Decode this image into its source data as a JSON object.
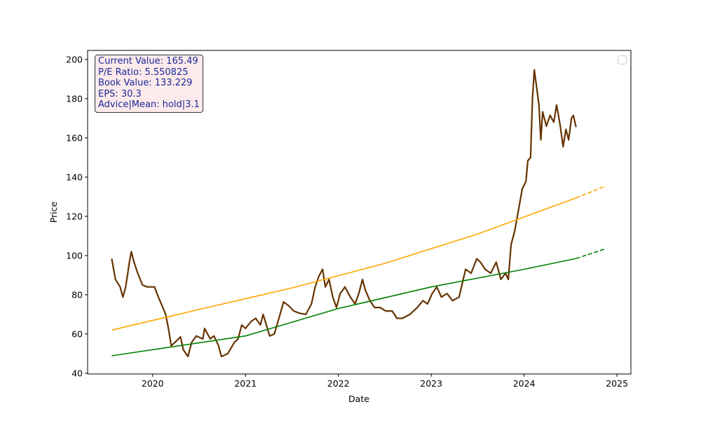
{
  "chart_data": {
    "type": "line",
    "title": "",
    "xlabel": "Date",
    "ylabel": "Price",
    "xlim": [
      2019.3,
      2025.15
    ],
    "ylim": [
      39.6,
      204.6
    ],
    "x_ticks": [
      "2020",
      "2021",
      "2022",
      "2023",
      "2024",
      "2025"
    ],
    "y_ticks": [
      "40",
      "60",
      "80",
      "100",
      "120",
      "140",
      "160",
      "180",
      "200"
    ],
    "grid": false,
    "legend": {
      "placement": "top-right",
      "entries": []
    },
    "annotation": {
      "lines": [
        "Current Value: 165.49",
        "P/E Ratio: 5.550825",
        "Book Value: 133.229",
        "EPS: 30.3",
        "Advice|Mean: hold|3.1"
      ]
    },
    "series": [
      {
        "color": "#663300",
        "style": "solid",
        "points": [
          [
            2019.56,
            98.4
          ],
          [
            2019.6,
            87.8
          ],
          [
            2019.65,
            84
          ],
          [
            2019.68,
            78.8
          ],
          [
            2019.71,
            84
          ],
          [
            2019.75,
            96.6
          ],
          [
            2019.77,
            102
          ],
          [
            2019.8,
            96.6
          ],
          [
            2019.84,
            91
          ],
          [
            2019.89,
            85
          ],
          [
            2019.94,
            84
          ],
          [
            2020.02,
            84
          ],
          [
            2020.06,
            79
          ],
          [
            2020.11,
            73.5
          ],
          [
            2020.14,
            70
          ],
          [
            2020.17,
            62.8
          ],
          [
            2020.2,
            54
          ],
          [
            2020.24,
            55.7
          ],
          [
            2020.3,
            58.5
          ],
          [
            2020.33,
            52
          ],
          [
            2020.38,
            48.5
          ],
          [
            2020.42,
            55.7
          ],
          [
            2020.47,
            59
          ],
          [
            2020.54,
            57.5
          ],
          [
            2020.56,
            62.8
          ],
          [
            2020.62,
            57.5
          ],
          [
            2020.66,
            59
          ],
          [
            2020.71,
            54
          ],
          [
            2020.74,
            48.5
          ],
          [
            2020.81,
            50
          ],
          [
            2020.88,
            55.7
          ],
          [
            2020.92,
            57.5
          ],
          [
            2020.96,
            64.6
          ],
          [
            2021.0,
            62.8
          ],
          [
            2021.06,
            66.4
          ],
          [
            2021.11,
            68
          ],
          [
            2021.16,
            64.6
          ],
          [
            2021.19,
            70
          ],
          [
            2021.26,
            59
          ],
          [
            2021.31,
            60
          ],
          [
            2021.36,
            68
          ],
          [
            2021.41,
            76.3
          ],
          [
            2021.46,
            74.6
          ],
          [
            2021.52,
            71.7
          ],
          [
            2021.58,
            70.6
          ],
          [
            2021.65,
            70
          ],
          [
            2021.71,
            75.3
          ],
          [
            2021.75,
            84
          ],
          [
            2021.79,
            89.5
          ],
          [
            2021.83,
            93
          ],
          [
            2021.86,
            84
          ],
          [
            2021.9,
            87.8
          ],
          [
            2021.94,
            78.8
          ],
          [
            2021.98,
            73.5
          ],
          [
            2022.02,
            80.6
          ],
          [
            2022.07,
            84
          ],
          [
            2022.13,
            78.8
          ],
          [
            2022.18,
            75.3
          ],
          [
            2022.22,
            80.6
          ],
          [
            2022.26,
            87.8
          ],
          [
            2022.29,
            82.4
          ],
          [
            2022.34,
            77
          ],
          [
            2022.39,
            73.5
          ],
          [
            2022.45,
            73.5
          ],
          [
            2022.51,
            71.7
          ],
          [
            2022.58,
            71.7
          ],
          [
            2022.63,
            68
          ],
          [
            2022.69,
            68
          ],
          [
            2022.77,
            70
          ],
          [
            2022.85,
            73.5
          ],
          [
            2022.91,
            77
          ],
          [
            2022.96,
            75.3
          ],
          [
            2023.01,
            80.6
          ],
          [
            2023.06,
            84
          ],
          [
            2023.11,
            78.8
          ],
          [
            2023.17,
            80.6
          ],
          [
            2023.23,
            77
          ],
          [
            2023.3,
            78.8
          ],
          [
            2023.37,
            93
          ],
          [
            2023.43,
            91
          ],
          [
            2023.49,
            98.4
          ],
          [
            2023.53,
            96.6
          ],
          [
            2023.58,
            93
          ],
          [
            2023.64,
            91
          ],
          [
            2023.7,
            96.6
          ],
          [
            2023.75,
            87.8
          ],
          [
            2023.8,
            91
          ],
          [
            2023.83,
            87.8
          ],
          [
            2023.86,
            105.6
          ],
          [
            2023.9,
            112.7
          ],
          [
            2023.94,
            123.4
          ],
          [
            2023.98,
            134
          ],
          [
            2024.02,
            137.7
          ],
          [
            2024.04,
            148.3
          ],
          [
            2024.07,
            150
          ],
          [
            2024.09,
            180.4
          ],
          [
            2024.11,
            194.7
          ],
          [
            2024.14,
            184
          ],
          [
            2024.16,
            176.8
          ],
          [
            2024.18,
            159
          ],
          [
            2024.2,
            173.3
          ],
          [
            2024.24,
            166
          ],
          [
            2024.28,
            171.5
          ],
          [
            2024.32,
            168
          ],
          [
            2024.35,
            176.8
          ],
          [
            2024.39,
            166
          ],
          [
            2024.42,
            155.5
          ],
          [
            2024.45,
            164.4
          ],
          [
            2024.48,
            159
          ],
          [
            2024.51,
            170
          ],
          [
            2024.53,
            171.5
          ],
          [
            2024.56,
            165.49
          ]
        ]
      },
      {
        "color": "#ffa500",
        "style": "solid",
        "points": [
          [
            2019.56,
            62
          ],
          [
            2020.5,
            72.5
          ],
          [
            2021.5,
            83.5
          ],
          [
            2022.5,
            96
          ],
          [
            2023.5,
            111
          ],
          [
            2024.56,
            129.4
          ]
        ]
      },
      {
        "color": "#ffa500",
        "style": "dashed",
        "points": [
          [
            2024.56,
            129.4
          ],
          [
            2024.88,
            135.5
          ]
        ]
      },
      {
        "color": "#008000",
        "style": "solid",
        "points": [
          [
            2019.56,
            48.9
          ],
          [
            2021,
            59
          ],
          [
            2022,
            73
          ],
          [
            2023,
            84
          ],
          [
            2024,
            93
          ],
          [
            2024.56,
            98.5
          ]
        ]
      },
      {
        "color": "#008000",
        "style": "dashed",
        "points": [
          [
            2024.56,
            98.5
          ],
          [
            2024.88,
            103.5
          ]
        ]
      }
    ]
  }
}
